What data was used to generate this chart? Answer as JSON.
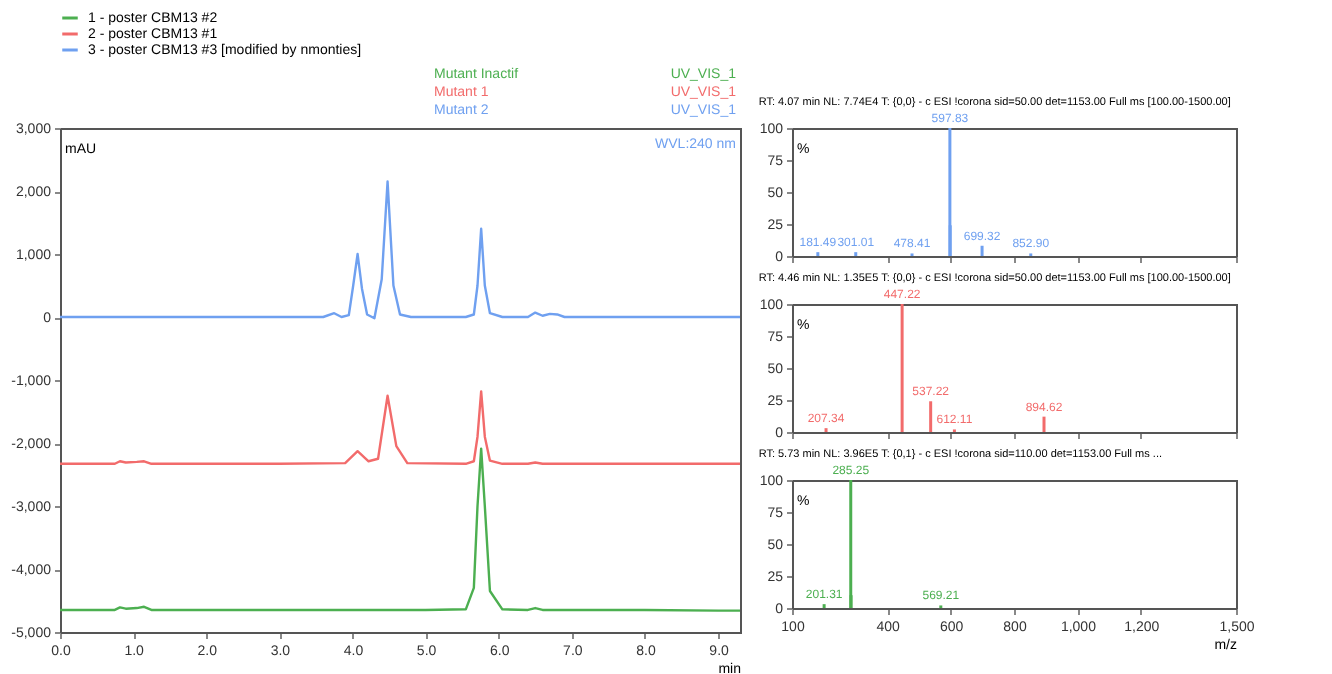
{
  "chart_data": [
    {
      "type": "line",
      "xlabel": "min",
      "ylabel": "mAU",
      "xlim": [
        0,
        9.3
      ],
      "ylim": [
        -5000,
        3000
      ],
      "legend": "top",
      "grid": false,
      "xticks": [
        {
          "value": 0,
          "label": "0.0"
        },
        {
          "value": 1,
          "label": "1.0"
        },
        {
          "value": 2,
          "label": "2.0"
        },
        {
          "value": 3,
          "label": "3.0"
        },
        {
          "value": 4,
          "label": "4.0"
        },
        {
          "value": 5,
          "label": "5.0"
        },
        {
          "value": 6,
          "label": "6.0"
        },
        {
          "value": 7,
          "label": "7.0"
        },
        {
          "value": 8,
          "label": "8.0"
        },
        {
          "value": 9,
          "label": "9.0"
        }
      ],
      "yticks": [
        {
          "value": 3000,
          "label": "3,000"
        },
        {
          "value": 2000,
          "label": "2,000"
        },
        {
          "value": 1000,
          "label": "1,000"
        },
        0,
        {
          "value": -1000,
          "label": "-1,000"
        },
        {
          "value": -2000,
          "label": "-2,000"
        },
        {
          "value": -3000,
          "label": "-3,000"
        },
        {
          "value": -4000,
          "label": "-4,000"
        },
        {
          "value": -5000,
          "label": "-5,000"
        }
      ],
      "annotations": [
        "Mutant Inactif",
        "Mutant 1",
        "Mutant 2",
        "UV_VIS_1",
        "UV_VIS_1",
        "UV_VIS_1",
        "WVL:240 nm"
      ],
      "series": [
        {
          "name": "1 - poster CBM13 #2",
          "color": "#4caf50",
          "x": [
            0,
            0.75,
            0.82,
            0.9,
            1.05,
            1.15,
            1.25,
            2,
            3,
            4,
            5,
            5.55,
            5.66,
            5.71,
            5.76,
            5.81,
            5.88,
            6.05,
            6.4,
            6.5,
            6.6,
            7,
            8,
            9,
            9.3
          ],
          "values": [
            -4650,
            -4650,
            -4610,
            -4630,
            -4620,
            -4600,
            -4650,
            -4650,
            -4650,
            -4650,
            -4650,
            -4640,
            -4300,
            -3000,
            -2090,
            -3000,
            -4350,
            -4640,
            -4650,
            -4620,
            -4650,
            -4650,
            -4650,
            -4660,
            -4660
          ]
        },
        {
          "name": "2 - poster CBM13 #1",
          "color": "#f26b6b",
          "x": [
            0,
            0.75,
            0.82,
            0.9,
            1.05,
            1.15,
            1.25,
            2,
            3,
            3.9,
            4.07,
            4.22,
            4.35,
            4.48,
            4.6,
            4.75,
            5.55,
            5.66,
            5.71,
            5.76,
            5.81,
            5.88,
            6.05,
            6.4,
            6.5,
            6.6,
            7,
            8,
            9,
            9.3
          ],
          "values": [
            -2330,
            -2330,
            -2290,
            -2310,
            -2300,
            -2290,
            -2330,
            -2330,
            -2330,
            -2320,
            -2130,
            -2290,
            -2250,
            -1250,
            -2050,
            -2320,
            -2330,
            -2290,
            -1900,
            -1180,
            -1900,
            -2280,
            -2330,
            -2330,
            -2310,
            -2330,
            -2330,
            -2330,
            -2330,
            -2330
          ]
        },
        {
          "name": "3 - poster CBM13 #3 [modified by nmonties]",
          "color": "#6fa0f0",
          "x": [
            0,
            1,
            2,
            3,
            3.6,
            3.75,
            3.85,
            3.95,
            4.01,
            4.07,
            4.13,
            4.2,
            4.3,
            4.4,
            4.48,
            4.56,
            4.65,
            4.8,
            5.55,
            5.66,
            5.71,
            5.76,
            5.81,
            5.88,
            6.05,
            6.4,
            6.5,
            6.6,
            6.7,
            6.8,
            6.9,
            7.2,
            8,
            9,
            9.3
          ],
          "values": [
            0,
            0,
            0,
            0,
            0,
            60,
            0,
            30,
            500,
            1000,
            450,
            40,
            -20,
            600,
            2150,
            500,
            40,
            0,
            0,
            40,
            500,
            1400,
            500,
            60,
            0,
            0,
            70,
            20,
            50,
            40,
            0,
            0,
            0,
            0,
            0
          ]
        }
      ]
    },
    {
      "type": "bar",
      "title": "RT: 4.07 min  NL: 7.74E4  T: {0,0}  - c ESI !corona sid=50.00  det=1153.00 Full ms [100.00-1500.00]",
      "ylabel": "%",
      "xlim": [
        100,
        1500
      ],
      "ylim": [
        0,
        100
      ],
      "yticks": [
        0,
        25,
        50,
        75,
        100
      ],
      "tick_labels": "y",
      "annotations": [
        {
          "text": "181.49",
          "x": 181.49,
          "y": 3
        },
        {
          "text": "301.01",
          "x": 301.01,
          "y": 3
        },
        {
          "text": "478.41",
          "x": 478.41,
          "y": 2
        },
        {
          "text": "597.83",
          "x": 597.83,
          "y": 100
        },
        {
          "text": "699.32",
          "x": 699.32,
          "y": 8
        },
        {
          "text": "852.90",
          "x": 852.9,
          "y": 2
        }
      ],
      "series": [
        {
          "color": "#6fa0f0",
          "x": [
            181.49,
            301.01,
            478.41,
            597.83,
            598.83,
            699.32,
            852.9
          ],
          "values": [
            3,
            3,
            2,
            100,
            24,
            8,
            2
          ]
        }
      ],
      "xticks": [
        100,
        400,
        600,
        800,
        1000,
        1200,
        1500
      ]
    },
    {
      "type": "bar",
      "title": "RT: 4.46 min  NL: 1.35E5  T: {0,0}  - c ESI !corona sid=50.00  det=1153.00 Full ms [100.00-1500.00]",
      "ylabel": "%",
      "xlim": [
        100,
        1500
      ],
      "ylim": [
        0,
        100
      ],
      "yticks": [
        0,
        25,
        50,
        75,
        100
      ],
      "tick_labels": "y",
      "annotations": [
        {
          "text": "207.34",
          "x": 207.34,
          "y": 3
        },
        {
          "text": "447.22",
          "x": 447.22,
          "y": 100
        },
        {
          "text": "537.22",
          "x": 537.22,
          "y": 24
        },
        {
          "text": "612.11",
          "x": 612.11,
          "y": 2
        },
        {
          "text": "894.62",
          "x": 894.62,
          "y": 12
        }
      ],
      "series": [
        {
          "color": "#f26b6b",
          "x": [
            207.34,
            447.22,
            537.22,
            612.11,
            894.62
          ],
          "values": [
            3,
            100,
            24,
            2,
            12
          ]
        }
      ],
      "xticks": [
        100,
        400,
        600,
        800,
        1000,
        1200,
        1500
      ]
    },
    {
      "type": "bar",
      "title": "RT: 5.73 min  NL: 3.96E5  T: {0,1}  - c ESI !corona sid=110.00  det=1153.00 Full ms ...",
      "ylabel": "%",
      "xlabel": "m/z",
      "xlim": [
        100,
        1500
      ],
      "ylim": [
        0,
        100
      ],
      "yticks": [
        0,
        25,
        50,
        75,
        100
      ],
      "xticks": [
        100,
        400,
        600,
        800,
        {
          "value": 1000,
          "label": "1,000"
        },
        {
          "value": 1200,
          "label": "1,200"
        },
        {
          "value": 1500,
          "label": "1,500"
        }
      ],
      "annotations": [
        {
          "text": "201.31",
          "x": 201.31,
          "y": 3
        },
        {
          "text": "285.25",
          "x": 285.25,
          "y": 100
        },
        {
          "text": "569.21",
          "x": 569.21,
          "y": 2
        }
      ],
      "series": [
        {
          "color": "#4caf50",
          "x": [
            201.31,
            285.25,
            286.25,
            569.21
          ],
          "values": [
            3,
            100,
            10,
            2
          ]
        }
      ]
    }
  ]
}
